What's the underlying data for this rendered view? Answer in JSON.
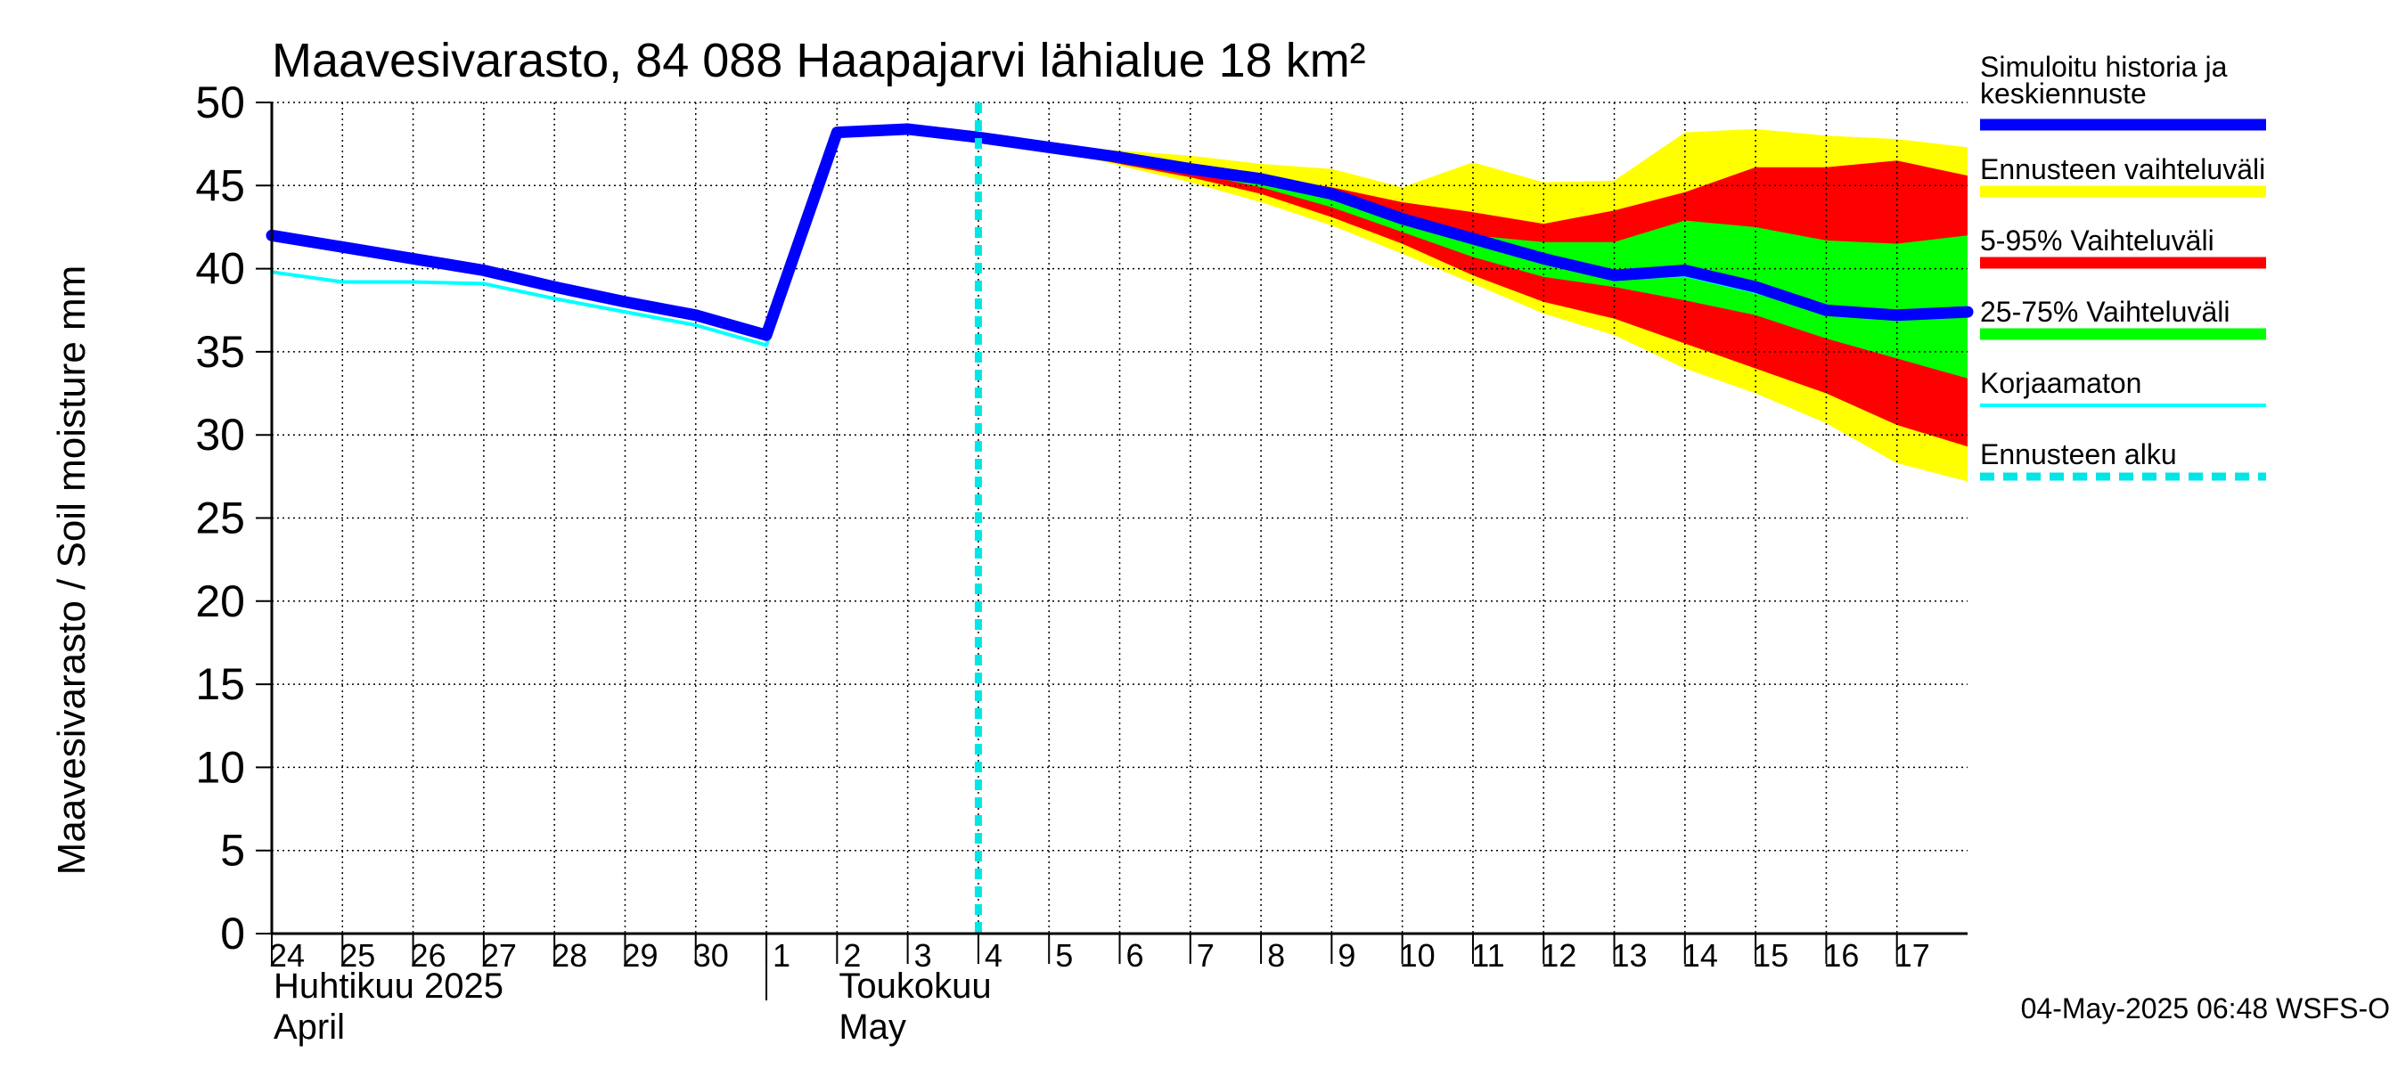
{
  "chart_data": {
    "type": "area",
    "title": "Maavesivarasto, 84 088 Haapajarvi lähialue 18 km²",
    "ylabel": "Maavesivarasto / Soil moisture   mm",
    "ylim": [
      0,
      50
    ],
    "yticks": [
      0,
      5,
      10,
      15,
      20,
      25,
      30,
      35,
      40,
      45,
      50
    ],
    "xlim": [
      0,
      24
    ],
    "grid": true,
    "legend_position": "right",
    "x_tick_labels": [
      {
        "x": 0,
        "label": "24"
      },
      {
        "x": 1,
        "label": "25"
      },
      {
        "x": 2,
        "label": "26"
      },
      {
        "x": 3,
        "label": "27"
      },
      {
        "x": 4,
        "label": "28"
      },
      {
        "x": 5,
        "label": "29"
      },
      {
        "x": 6,
        "label": "30"
      },
      {
        "x": 7,
        "label": "1"
      },
      {
        "x": 8,
        "label": "2"
      },
      {
        "x": 9,
        "label": "3"
      },
      {
        "x": 10,
        "label": "4"
      },
      {
        "x": 11,
        "label": "5"
      },
      {
        "x": 12,
        "label": "6"
      },
      {
        "x": 13,
        "label": "7"
      },
      {
        "x": 14,
        "label": "8"
      },
      {
        "x": 15,
        "label": "9"
      },
      {
        "x": 16,
        "label": "10"
      },
      {
        "x": 17,
        "label": "11"
      },
      {
        "x": 18,
        "label": "12"
      },
      {
        "x": 19,
        "label": "13"
      },
      {
        "x": 20,
        "label": "14"
      },
      {
        "x": 21,
        "label": "15"
      },
      {
        "x": 22,
        "label": "16"
      },
      {
        "x": 23,
        "label": "17"
      }
    ],
    "month_labels": [
      {
        "x": 0,
        "line1": "Huhtikuu  2025",
        "line2": "April"
      },
      {
        "x": 8,
        "line1": "Toukokuu",
        "line2": "May"
      }
    ],
    "month_boundary_x": 7,
    "forecast_start_x": 10,
    "bands": {
      "x": [
        10,
        11,
        12,
        13,
        14,
        15,
        16,
        17,
        18,
        19,
        20,
        21,
        22,
        23,
        24
      ],
      "outer_low": [
        47.9,
        47.2,
        46.2,
        45.2,
        44.0,
        42.6,
        40.9,
        39.1,
        37.3,
        36.0,
        34.0,
        32.5,
        30.7,
        28.3,
        27.2
      ],
      "outer_high": [
        47.9,
        47.4,
        47.1,
        46.8,
        46.3,
        46.0,
        44.9,
        46.4,
        45.2,
        45.3,
        48.2,
        48.4,
        48.0,
        47.8,
        47.3
      ],
      "p5": [
        47.9,
        47.2,
        46.3,
        45.5,
        44.5,
        43.1,
        41.5,
        39.6,
        38.0,
        37.0,
        35.5,
        34.0,
        32.5,
        30.6,
        29.3
      ],
      "p95": [
        47.9,
        47.3,
        46.8,
        46.2,
        45.6,
        44.9,
        44.0,
        43.4,
        42.7,
        43.5,
        44.6,
        46.1,
        46.1,
        46.5,
        45.6
      ],
      "p25": [
        47.9,
        47.2,
        46.5,
        45.8,
        44.9,
        43.7,
        42.2,
        40.7,
        39.5,
        38.9,
        38.1,
        37.2,
        35.8,
        34.6,
        33.4
      ],
      "p75": [
        47.9,
        47.3,
        46.6,
        45.9,
        45.1,
        44.2,
        43.1,
        42.0,
        41.6,
        41.6,
        42.9,
        42.5,
        41.7,
        41.5,
        42.0
      ]
    },
    "series": [
      {
        "name": "Korjaamaton",
        "x": [
          0,
          1,
          2,
          3,
          4,
          5,
          6,
          7,
          8,
          9,
          10,
          11,
          12,
          13,
          14,
          15,
          16,
          17,
          18,
          19,
          20,
          21,
          22,
          23,
          24
        ],
        "values": [
          39.8,
          39.2,
          39.2,
          39.1,
          38.2,
          37.4,
          36.6,
          35.4,
          48.1,
          48.3,
          47.9,
          47.3,
          46.7,
          46.0,
          45.2,
          44.3,
          42.9,
          41.6,
          40.4,
          39.4,
          39.6,
          38.6,
          37.4,
          37.2,
          37.3
        ]
      },
      {
        "name": "Simuloitu historia ja keskiennuste",
        "x": [
          0,
          1,
          2,
          3,
          4,
          5,
          6,
          7,
          8,
          9,
          10,
          11,
          12,
          13,
          14,
          15,
          16,
          17,
          18,
          19,
          20,
          21,
          22,
          23,
          24
        ],
        "values": [
          42.0,
          41.3,
          40.6,
          39.9,
          38.9,
          38.0,
          37.2,
          36.0,
          48.2,
          48.4,
          47.9,
          47.3,
          46.7,
          46.0,
          45.4,
          44.5,
          43.0,
          41.8,
          40.6,
          39.6,
          39.9,
          38.9,
          37.5,
          37.2,
          37.4
        ]
      }
    ],
    "legend": [
      {
        "line1": "Simuloitu historia ja",
        "line2": "keskiennuste",
        "color": "#0000ff",
        "style": "thick"
      },
      {
        "line1": "Ennusteen vaihteluväli",
        "line2": "",
        "color": "#ffff00",
        "style": "thick"
      },
      {
        "line1": "5-95% Vaihteluväli",
        "line2": "",
        "color": "#ff0000",
        "style": "thick"
      },
      {
        "line1": "25-75% Vaihteluväli",
        "line2": "",
        "color": "#00ff00",
        "style": "thick"
      },
      {
        "line1": "Korjaamaton",
        "line2": "",
        "color": "#00ffff",
        "style": "thin"
      },
      {
        "line1": "Ennusteen alku",
        "line2": "",
        "color": "#00e5e5",
        "style": "dashed"
      }
    ],
    "timestamp": "04-May-2025 06:48 WSFS-O",
    "colors": {
      "outer": "#ffff00",
      "p595": "#ff0000",
      "p2575": "#00ff00",
      "median": "#0000ff",
      "uncorrected": "#00ffff",
      "forecast_line": "#00e5e5"
    }
  }
}
